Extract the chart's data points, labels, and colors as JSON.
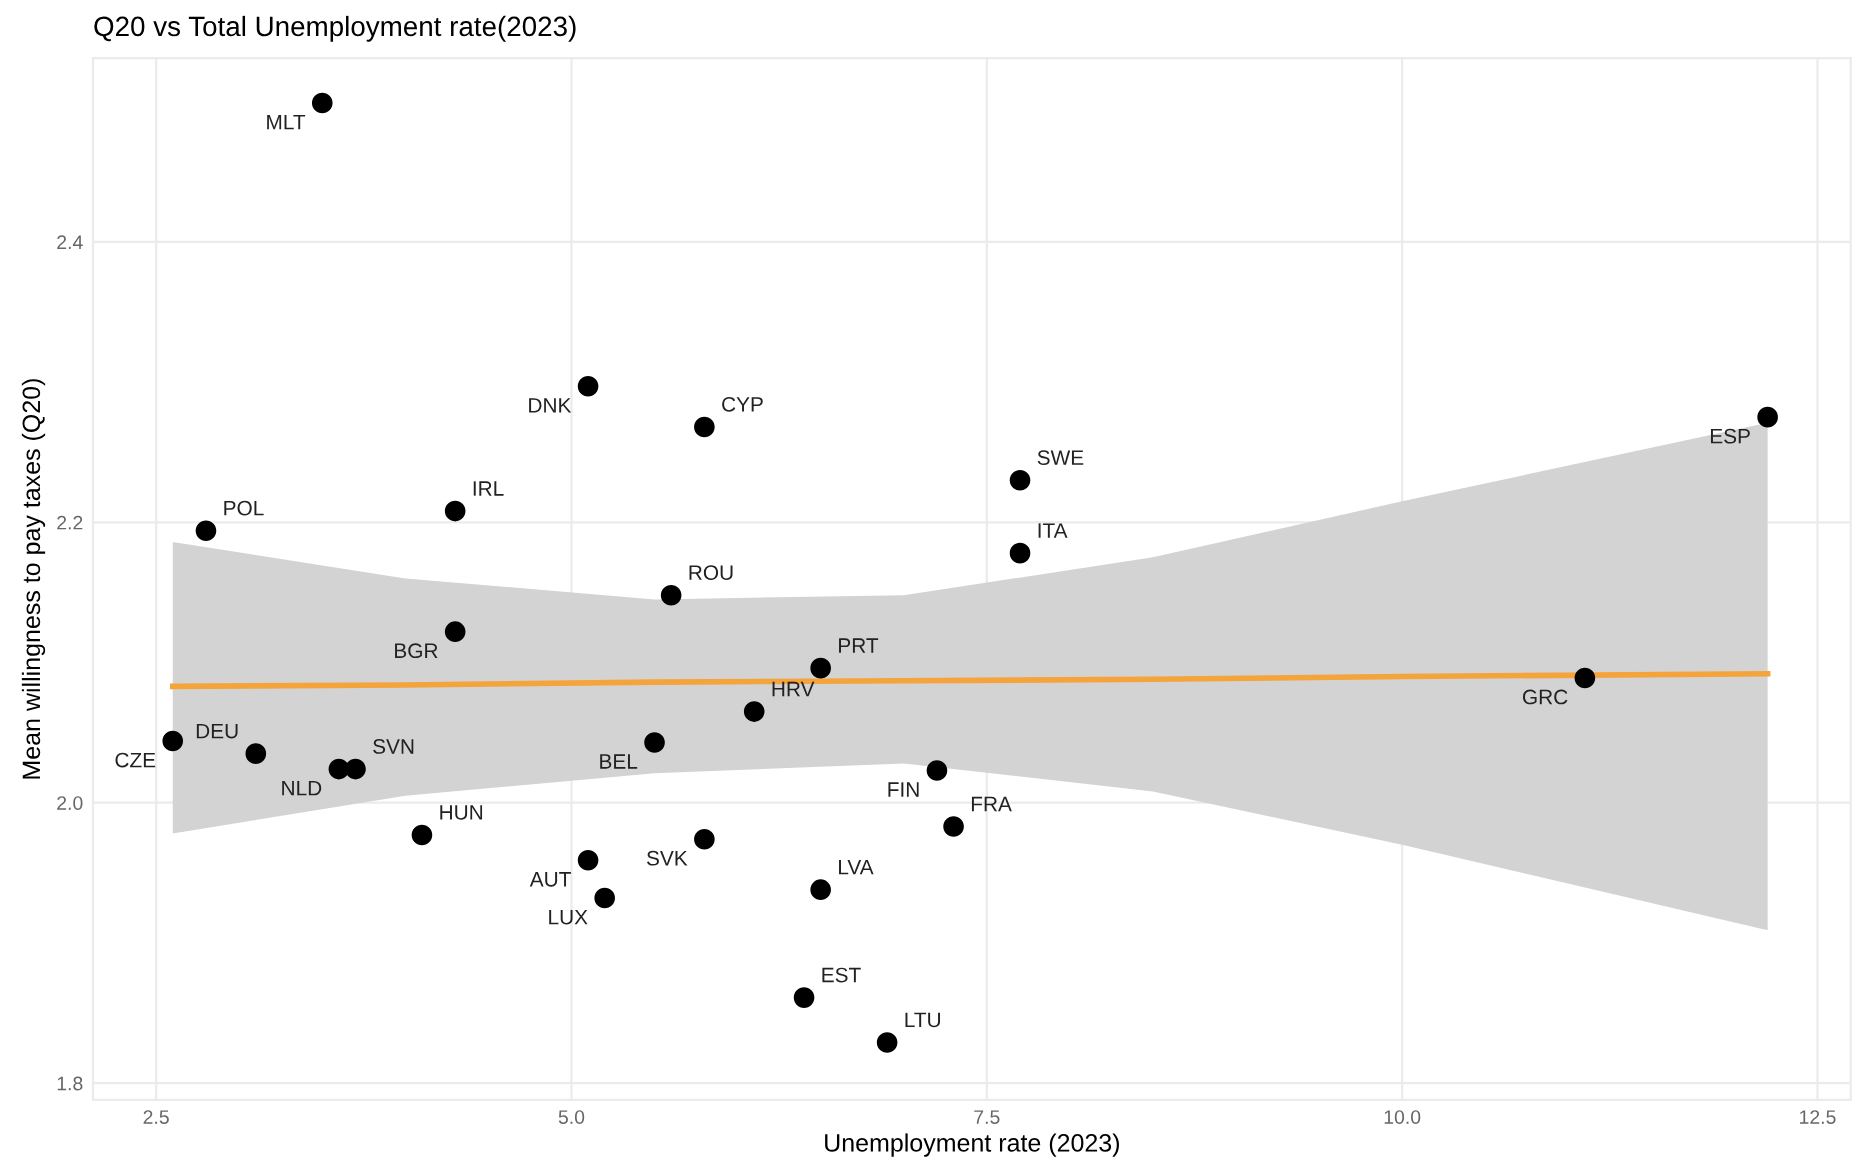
{
  "chart_data": {
    "type": "scatter",
    "title": "Q20 vs Total Unemployment rate(2023)",
    "xlabel": "Unemployment rate (2023)",
    "ylabel": "Mean willingness to pay taxes (Q20)",
    "series": [
      {
        "type": "line",
        "marker": "none",
        "color": "#f5a33b",
        "x": [
          2.6,
          4.0,
          5.5,
          7.0,
          8.5,
          10.0,
          12.2
        ],
        "values": [
          2.083,
          2.084,
          2.086,
          2.087,
          2.088,
          2.09,
          2.092
        ],
        "lower": [
          1.978,
          2.005,
          2.021,
          2.028,
          2.008,
          1.97,
          1.909
        ],
        "upper": [
          2.186,
          2.16,
          2.145,
          2.148,
          2.175,
          2.215,
          2.271
        ]
      },
      {
        "marker": "circle",
        "color": "#000000",
        "x": [
          3.5,
          5.1,
          5.8,
          4.3,
          2.8,
          7.7,
          7.7,
          12.2,
          5.6,
          4.3,
          6.5,
          6.1,
          2.6,
          3.1,
          3.6,
          3.7,
          5.5,
          7.2,
          11.1,
          7.3,
          4.1,
          5.8,
          5.1,
          5.2,
          6.5,
          6.4,
          6.9
        ],
        "values": [
          2.499,
          2.297,
          2.268,
          2.208,
          2.194,
          2.23,
          2.178,
          2.275,
          2.148,
          2.122,
          2.096,
          2.065,
          2.044,
          2.035,
          2.024,
          2.024,
          2.043,
          2.023,
          2.089,
          1.983,
          1.977,
          1.974,
          1.959,
          1.932,
          1.938,
          1.861,
          1.829
        ],
        "value_labels": [
          "MLT",
          "DNK",
          "CYP",
          "IRL",
          "POL",
          "SWE",
          "ITA",
          "ESP",
          "ROU",
          "BGR",
          "PRT",
          "HRV",
          "CZE",
          "DEU",
          "NLD",
          "SVN",
          "BEL",
          "FIN",
          "GRC",
          "FRA",
          "HUN",
          "SVK",
          "AUT",
          "LUX",
          "LVA",
          "EST",
          "LTU"
        ]
      }
    ],
    "xlim": [
      2.12,
      12.7
    ],
    "ylim": [
      1.788,
      2.531
    ],
    "xticks": [
      2.5,
      {
        "value": 5,
        "label": "5.0"
      },
      7.5,
      {
        "value": 10,
        "label": "10.0"
      },
      12.5
    ],
    "yticks": [
      1.8,
      {
        "value": 2,
        "label": "2.0"
      },
      2.2,
      2.4
    ],
    "grid": true
  }
}
